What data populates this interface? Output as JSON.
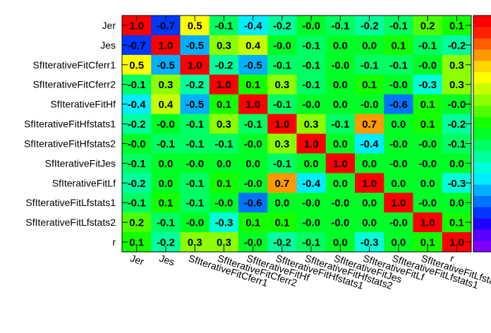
{
  "chart_data": {
    "type": "heatmap",
    "title": "",
    "xlabel": "",
    "ylabel": "",
    "labels": [
      "Jer",
      "Jes",
      "SfIterativeFitCferr1",
      "SfIterativeFitCferr2",
      "SfIterativeFitHf",
      "SfIterativeFitHfstats1",
      "SfIterativeFitHfstats2",
      "SfIterativeFitJes",
      "SfIterativeFitLf",
      "SfIterativeFitLfstats1",
      "SfIterativeFitLfstats2",
      "r"
    ],
    "values": [
      [
        "1.0",
        "-0.7",
        "0.5",
        "-0.1",
        "-0.4",
        "-0.2",
        "-0.0",
        "-0.1",
        "-0.2",
        "-0.1",
        "0.2",
        "0.1"
      ],
      [
        "-0.7",
        "1.0",
        "-0.5",
        "0.3",
        "0.4",
        "-0.0",
        "-0.1",
        "0.0",
        "0.0",
        "0.1",
        "-0.1",
        "-0.2"
      ],
      [
        "0.5",
        "-0.5",
        "1.0",
        "-0.2",
        "-0.5",
        "-0.1",
        "-0.1",
        "-0.0",
        "-0.1",
        "-0.1",
        "-0.0",
        "0.3"
      ],
      [
        "-0.1",
        "0.3",
        "-0.2",
        "1.0",
        "0.1",
        "0.3",
        "-0.1",
        "0.0",
        "0.1",
        "-0.0",
        "-0.3",
        "0.3"
      ],
      [
        "-0.4",
        "0.4",
        "-0.5",
        "0.1",
        "1.0",
        "-0.1",
        "-0.0",
        "0.0",
        "-0.0",
        "-0.6",
        "0.1",
        "-0.0"
      ],
      [
        "-0.2",
        "-0.0",
        "-0.1",
        "0.3",
        "-0.1",
        "1.0",
        "0.3",
        "-0.1",
        "0.7",
        "0.0",
        "0.1",
        "-0.2"
      ],
      [
        "-0.0",
        "-0.1",
        "-0.1",
        "-0.1",
        "-0.0",
        "0.3",
        "1.0",
        "0.0",
        "-0.4",
        "-0.0",
        "-0.0",
        "-0.1"
      ],
      [
        "-0.1",
        "0.0",
        "-0.0",
        "0.0",
        "0.0",
        "-0.1",
        "0.0",
        "1.0",
        "0.0",
        "-0.0",
        "-0.0",
        "0.0"
      ],
      [
        "-0.2",
        "0.0",
        "-0.1",
        "0.1",
        "-0.0",
        "0.7",
        "-0.4",
        "0.0",
        "1.0",
        "0.0",
        "0.0",
        "-0.3"
      ],
      [
        "-0.1",
        "0.1",
        "-0.1",
        "-0.0",
        "-0.6",
        "0.0",
        "-0.0",
        "-0.0",
        "0.0",
        "1.0",
        "-0.0",
        "0.0"
      ],
      [
        "0.2",
        "-0.1",
        "-0.0",
        "-0.3",
        "0.1",
        "0.1",
        "-0.0",
        "-0.0",
        "0.0",
        "-0.0",
        "1.0",
        "0.1"
      ],
      [
        "0.1",
        "-0.2",
        "0.3",
        "0.3",
        "-0.0",
        "-0.2",
        "-0.1",
        "0.0",
        "-0.3",
        "0.0",
        "0.1",
        "1.0"
      ]
    ],
    "zlim": [
      -1,
      1
    ],
    "colorscale": [
      "#7f00ff",
      "#5a00ff",
      "#1f00ff",
      "#0037ff",
      "#0073ff",
      "#00b0ff",
      "#00ecff",
      "#00ffd8",
      "#00ff9d",
      "#00ff62",
      "#00ff27",
      "#14ff00",
      "#4fff00",
      "#8bff00",
      "#c7ff00",
      "#ffff00",
      "#ffd400",
      "#ff9900",
      "#ff5d00",
      "#ff2100",
      "#ff0000"
    ],
    "grid": false,
    "legend": "colorbar-right"
  }
}
